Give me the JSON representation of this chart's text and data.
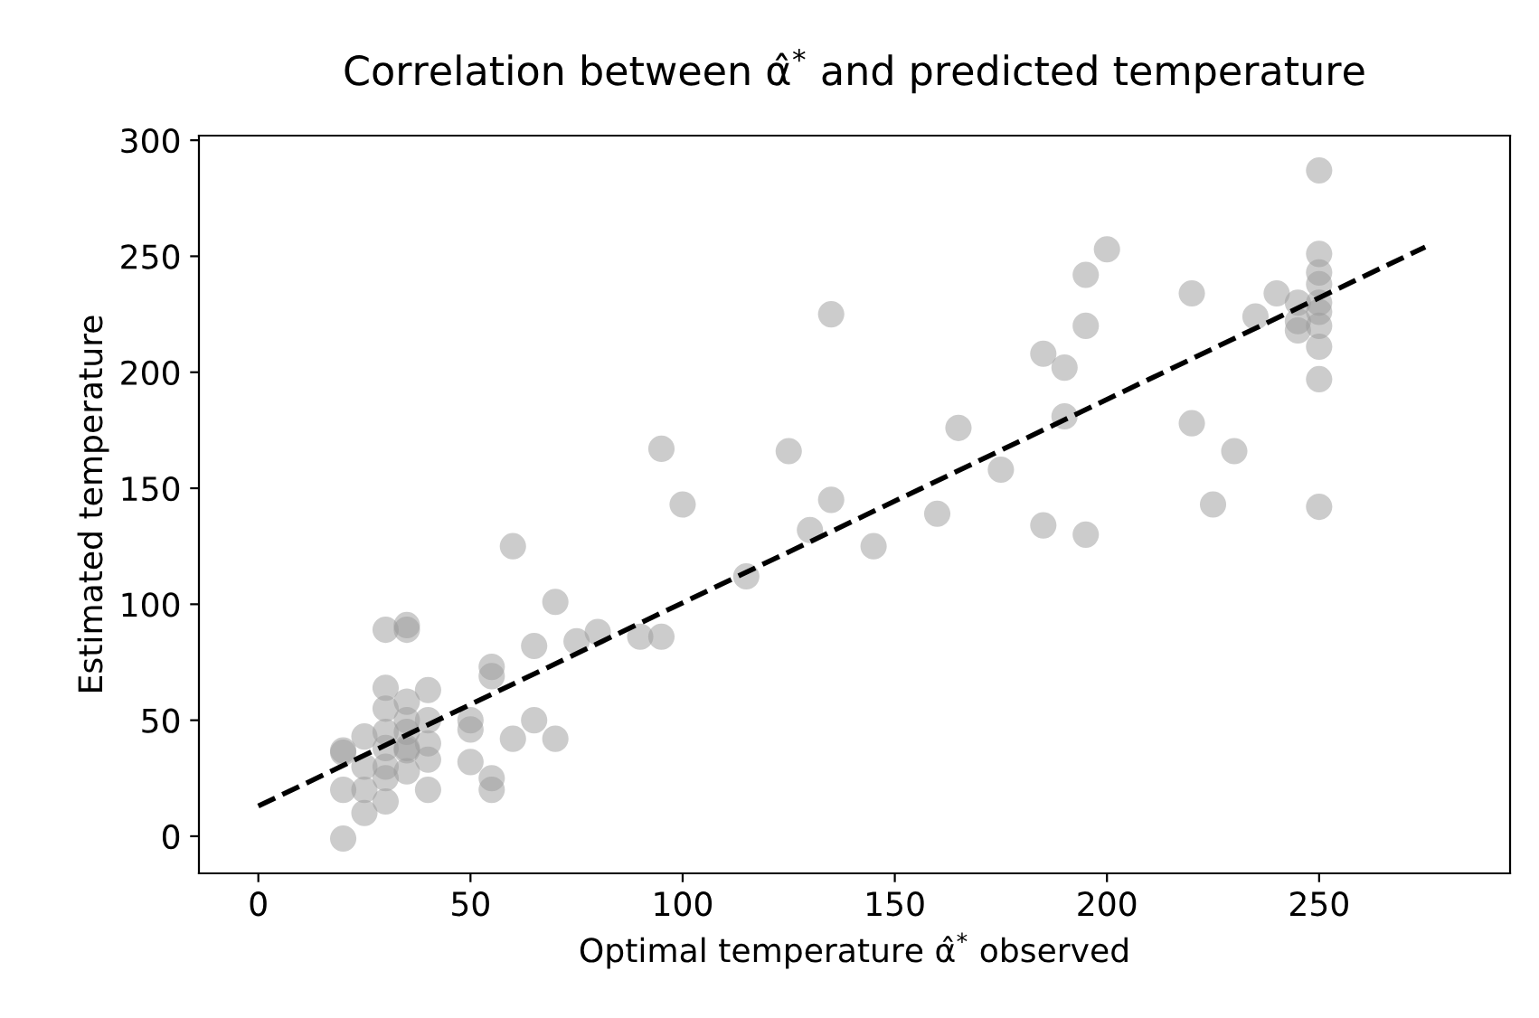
{
  "chart_data": {
    "type": "scatter",
    "title": "Correlation between α̂$^{*}$ and predicted temperature",
    "xlabel": "Optimal temperature α̂$^{*}$ observed",
    "ylabel": "Estimated temperature",
    "xlim": [
      -14,
      295
    ],
    "ylim": [
      -16,
      302
    ],
    "xticks": [
      0,
      50,
      100,
      150,
      200,
      250
    ],
    "yticks": [
      0,
      50,
      100,
      150,
      200,
      250,
      300
    ],
    "grid": false,
    "legend": false,
    "marker": "circle",
    "series": [
      {
        "color": "#999999",
        "x": [
          20,
          20,
          20,
          20,
          25,
          25,
          25,
          25,
          30,
          30,
          30,
          30,
          30,
          30,
          30,
          30,
          35,
          35,
          35,
          35,
          35,
          35,
          35,
          35,
          40,
          40,
          40,
          40,
          40,
          50,
          50,
          50,
          55,
          55,
          55,
          55,
          60,
          60,
          65,
          65,
          70,
          70,
          75,
          80,
          90,
          95,
          95,
          100,
          115,
          125,
          130,
          135,
          135,
          145,
          160,
          165,
          175,
          185,
          185,
          190,
          190,
          195,
          195,
          195,
          200,
          220,
          220,
          225,
          230,
          235,
          240,
          245,
          245,
          245,
          250,
          250,
          250,
          250,
          250,
          250,
          250,
          250,
          250,
          250
        ],
        "values": [
          37,
          36,
          20,
          -1,
          43,
          30,
          20,
          10,
          89,
          64,
          55,
          45,
          38,
          30,
          25,
          15,
          91,
          89,
          58,
          50,
          45,
          38,
          37,
          28,
          63,
          50,
          40,
          33,
          20,
          50,
          46,
          32,
          73,
          69,
          25,
          20,
          125,
          42,
          82,
          50,
          101,
          42,
          84,
          88,
          86,
          167,
          86,
          143,
          112,
          166,
          132,
          225,
          145,
          125,
          139,
          176,
          158,
          208,
          134,
          202,
          181,
          242,
          220,
          130,
          253,
          234,
          178,
          143,
          166,
          224,
          234,
          230,
          222,
          218,
          287,
          251,
          243,
          238,
          230,
          226,
          220,
          211,
          197,
          142
        ]
      },
      {
        "type": "line",
        "color": "#000000",
        "line_style": "dashed",
        "marker": "none",
        "x": [
          0,
          275
        ],
        "values": [
          13,
          254
        ]
      }
    ]
  }
}
